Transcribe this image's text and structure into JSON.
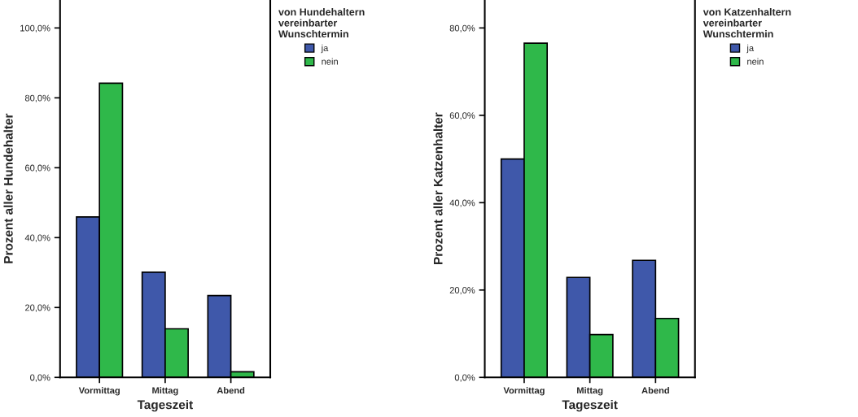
{
  "chart_data": [
    {
      "type": "bar",
      "categories": [
        "Vormittag",
        "Mittag",
        "Abend"
      ],
      "xlabel": "Tageszeit",
      "ylabel": "Prozent aller Hundehalter",
      "legend_title": "von Hundehaltern vereinbarter Wunschtermin",
      "legend": "top right",
      "series": [
        {
          "name": "ja",
          "color": "#3f58aa",
          "values": [
            45.9,
            30.1,
            23.4
          ]
        },
        {
          "name": "nein",
          "color": "#2fb84a",
          "values": [
            84.2,
            13.9,
            1.6
          ]
        }
      ],
      "ylim": [
        0,
        108
      ],
      "yticks": [
        {
          "value": 0,
          "label": "0,0%"
        },
        {
          "value": 20,
          "label": "20,0%"
        },
        {
          "value": 40,
          "label": "40,0%"
        },
        {
          "value": 60,
          "label": "60,0%"
        },
        {
          "value": 80,
          "label": "80,0%"
        },
        {
          "value": 100,
          "label": "100,0%"
        }
      ],
      "grid": false
    },
    {
      "type": "bar",
      "categories": [
        "Vormittag",
        "Mittag",
        "Abend"
      ],
      "xlabel": "Tageszeit",
      "ylabel": "Prozent aller Katzenhalter",
      "legend_title": "von Katzenhaltern vereinbarter Wunschtermin",
      "legend": "top right",
      "series": [
        {
          "name": "ja",
          "color": "#3f58aa",
          "values": [
            50.0,
            22.9,
            26.8
          ]
        },
        {
          "name": "nein",
          "color": "#2fb84a",
          "values": [
            76.5,
            9.8,
            13.5
          ]
        }
      ],
      "ylim": [
        0,
        86.4
      ],
      "yticks": [
        {
          "value": 0,
          "label": "0,0%"
        },
        {
          "value": 20,
          "label": "20,0%"
        },
        {
          "value": 40,
          "label": "40,0%"
        },
        {
          "value": 60,
          "label": "60,0%"
        },
        {
          "value": 80,
          "label": "80,0%"
        }
      ],
      "grid": false
    }
  ]
}
